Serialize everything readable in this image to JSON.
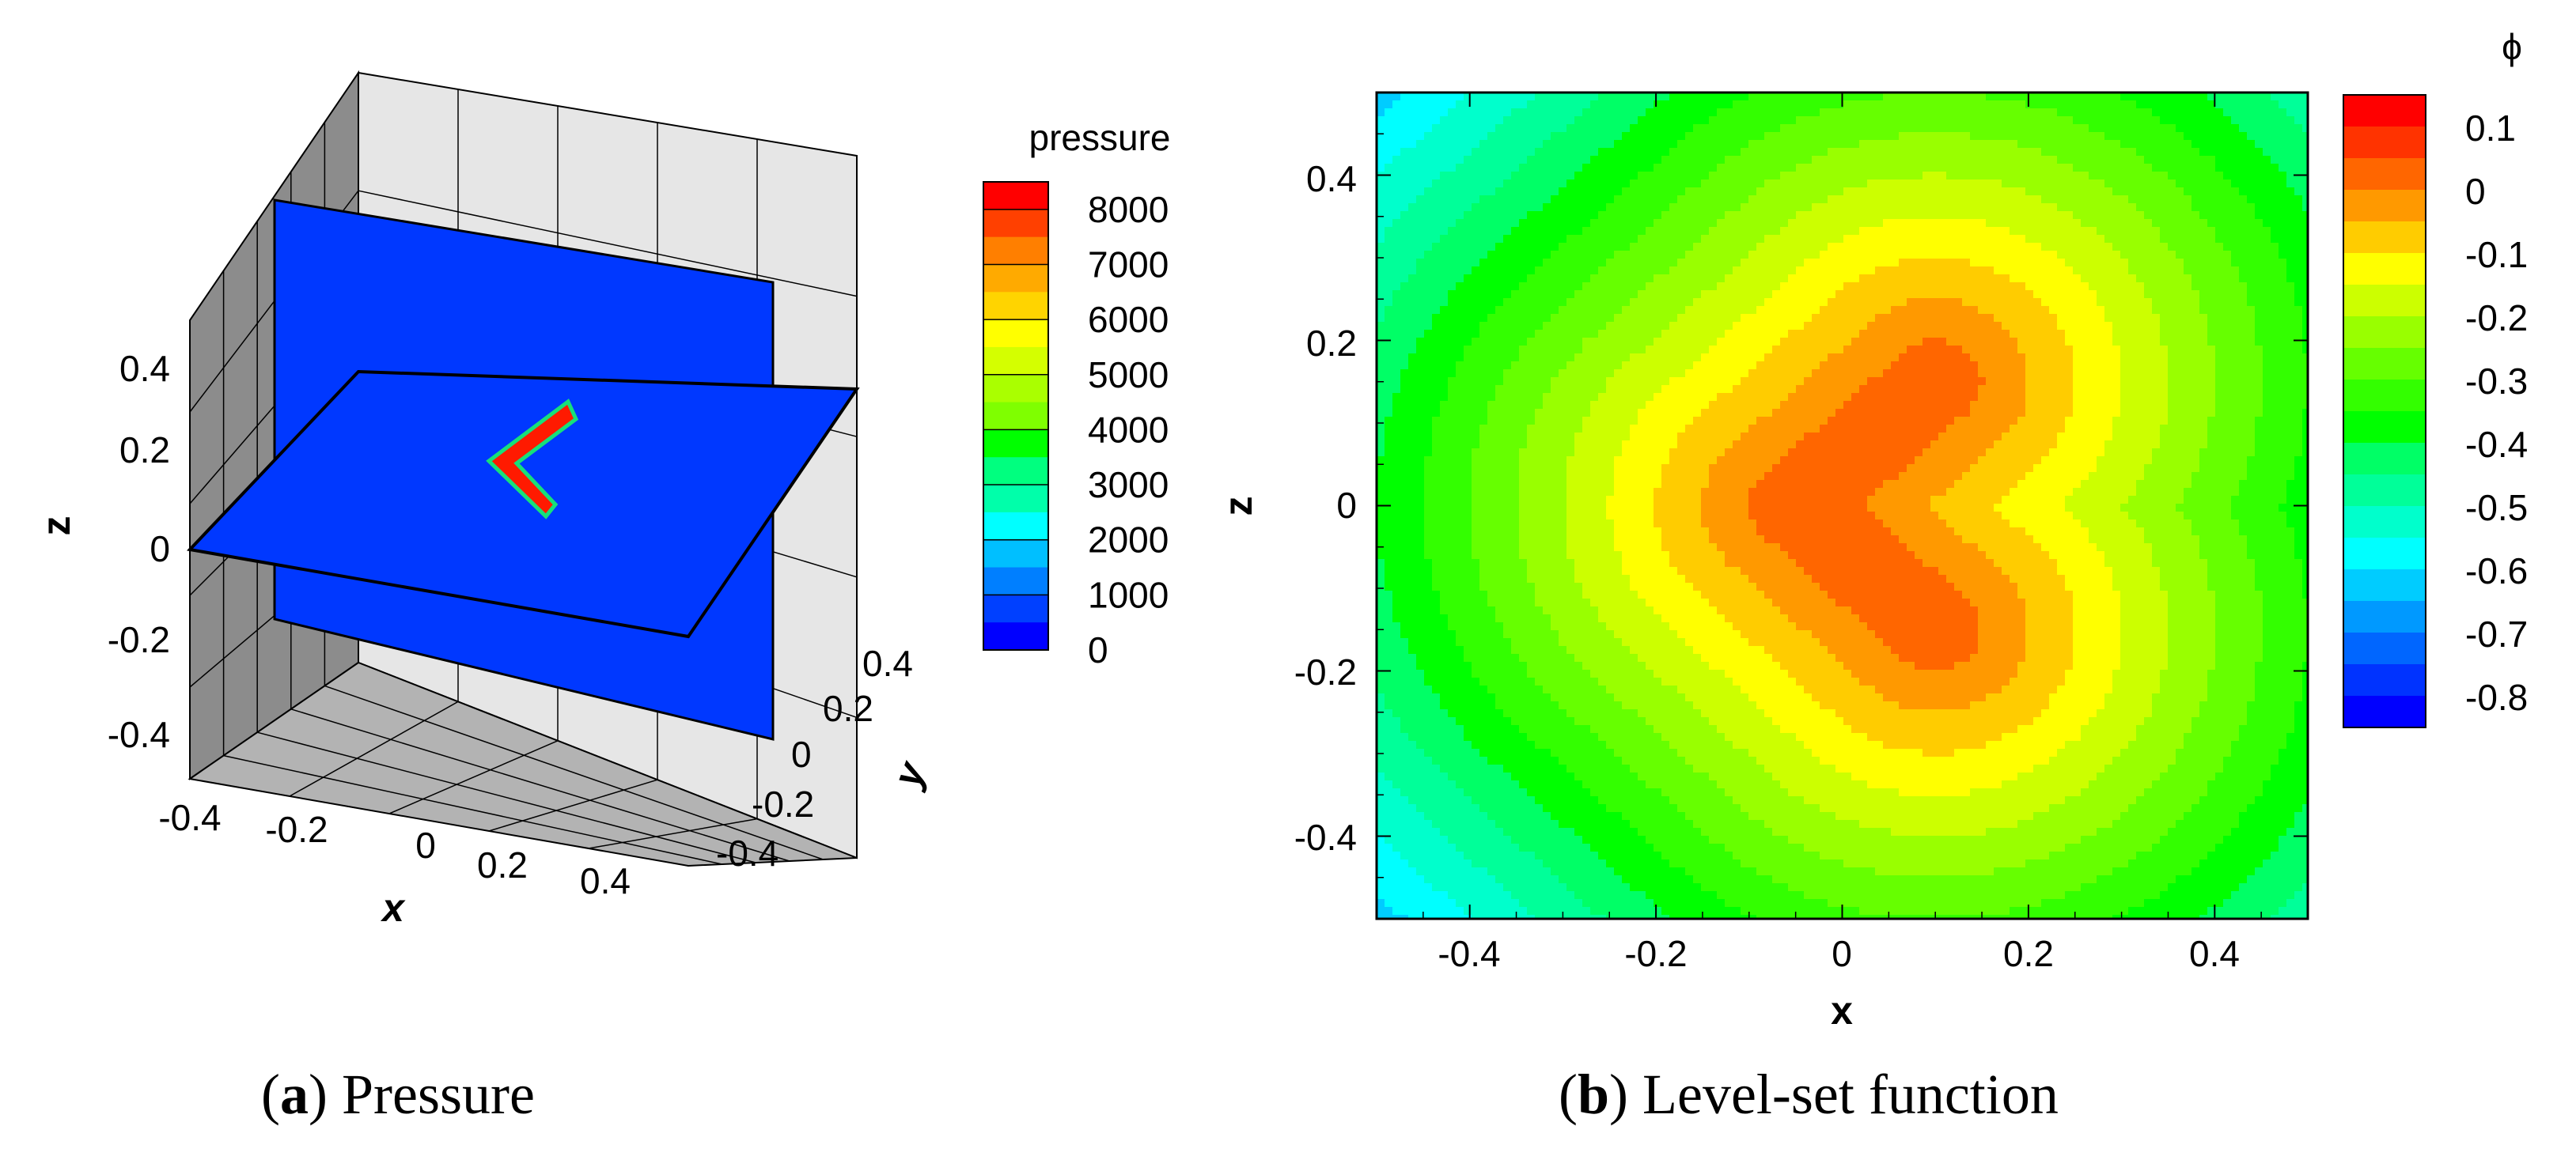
{
  "chart_data": [
    {
      "type": "surface3d",
      "caption": {
        "letter": "a",
        "text": "Pressure"
      },
      "xlabel": "x",
      "ylabel": "y",
      "zlabel": "z",
      "xlim": [
        -0.5,
        0.5
      ],
      "ylim": [
        -0.5,
        0.5
      ],
      "zlim": [
        -0.5,
        0.5
      ],
      "x_ticks": [
        "-0.4",
        "-0.2",
        "0",
        "0.2",
        "0.4"
      ],
      "y_ticks": [
        "-0.4",
        "-0.2",
        "0",
        "0.2",
        "0.4"
      ],
      "z_ticks": [
        "-0.4",
        "-0.2",
        "0",
        "0.2",
        "0.4"
      ],
      "legend": {
        "title": "pressure",
        "ticks": [
          "8000",
          "7000",
          "6000",
          "5000",
          "4000",
          "3000",
          "2000",
          "1000",
          "0"
        ],
        "range": [
          0,
          8500
        ]
      },
      "slices": [
        {
          "plane": "y = 0",
          "value": 0
        },
        {
          "plane": "z = 0",
          "value": 0
        }
      ],
      "high_pressure_region": {
        "shape": "chevron",
        "value": 8500,
        "location": "z = 0 plane"
      },
      "colors": {
        "slice": "#0033FF",
        "high": "#FF1400",
        "wall_back": "#E5E5E5",
        "wall_side": "#8C8C8C",
        "floor": "#B3B3B3"
      }
    },
    {
      "type": "contour",
      "caption": {
        "letter": "b",
        "text": "Level-set function"
      },
      "xlabel": "x",
      "ylabel": "z",
      "xlim": [
        -0.5,
        0.5
      ],
      "ylim": [
        -0.5,
        0.5
      ],
      "x_ticks": [
        "-0.4",
        "-0.2",
        "0",
        "0.2",
        "0.4"
      ],
      "y_ticks": [
        "-0.4",
        "-0.2",
        "0",
        "0.2",
        "0.4"
      ],
      "legend": {
        "title": "ϕ",
        "ticks": [
          "0.1",
          "0",
          "-0.1",
          "-0.2",
          "-0.3",
          "-0.4",
          "-0.5",
          "-0.6",
          "-0.7",
          "-0.8"
        ]
      },
      "field": {
        "description": "signed distance to a chevron of two segments",
        "segments": [
          [
            [
              -0.05,
              0.0
            ],
            [
              0.1,
              0.15
            ]
          ],
          [
            [
              -0.05,
              0.0
            ],
            [
              0.1,
              -0.15
            ]
          ]
        ],
        "max_value": 0.05,
        "min_value": -0.7
      },
      "levels": [
        0.15,
        0.125,
        0.1,
        0.075,
        0.05,
        0.025,
        0.0,
        -0.025,
        -0.05,
        -0.075,
        -0.1,
        -0.125,
        -0.15,
        -0.175,
        -0.2,
        -0.225,
        -0.25,
        -0.275,
        -0.3,
        -0.325,
        -0.35,
        -0.375,
        -0.4,
        -0.425,
        -0.45,
        -0.475,
        -0.5,
        -0.525,
        -0.55,
        -0.575,
        -0.6,
        -0.625,
        -0.65,
        -0.675,
        -0.7,
        -0.725,
        -0.75,
        -0.775,
        -0.8,
        -0.825
      ],
      "colors": [
        "#FF0000",
        "#FF3300",
        "#FF6600",
        "#FF9900",
        "#FFCC00",
        "#FFFF00",
        "#CCFF00",
        "#99FF00",
        "#66FF00",
        "#33FF00",
        "#00FF00",
        "#00FF66",
        "#00FF99",
        "#00FFCC",
        "#00FFFF",
        "#00CCFF",
        "#0099FF",
        "#0066FF",
        "#0033FF",
        "#0000FF"
      ]
    }
  ]
}
